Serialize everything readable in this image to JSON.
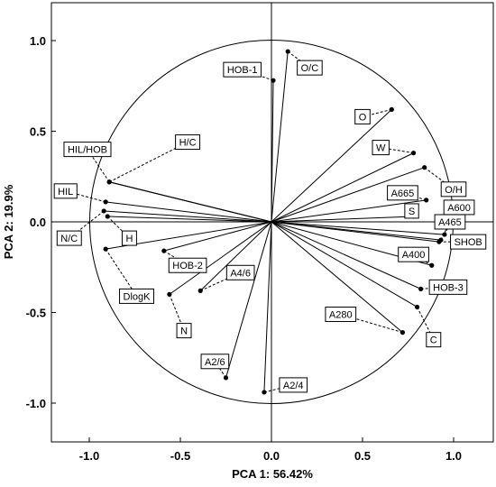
{
  "chart_data": {
    "type": "scatter",
    "xlabel": "PCA 1: 56.42%",
    "ylabel": "PCA 2: 19.9%",
    "xlim": [
      -1.2,
      1.2
    ],
    "ylim": [
      -1.2,
      1.2
    ],
    "x_ticks": [
      "-1.0",
      "-0.5",
      "0.0",
      "0.5",
      "1.0"
    ],
    "y_ticks": [
      "1.0",
      "0.5",
      "0.0",
      "-0.5",
      "-1.0"
    ],
    "x_tick_values": [
      -1.0,
      -0.5,
      0.0,
      0.5,
      1.0
    ],
    "y_tick_values": [
      1.0,
      0.5,
      0.0,
      -0.5,
      -1.0
    ],
    "unit_circle": true,
    "grid": false,
    "points": [
      {
        "label": "HOB-1",
        "x": 0.01,
        "y": 0.78,
        "lx": -0.16,
        "ly": 0.84
      },
      {
        "label": "O/C",
        "x": 0.09,
        "y": 0.94,
        "lx": 0.21,
        "ly": 0.85
      },
      {
        "label": "O",
        "x": 0.66,
        "y": 0.62,
        "lx": 0.5,
        "ly": 0.58
      },
      {
        "label": "W",
        "x": 0.78,
        "y": 0.38,
        "lx": 0.6,
        "ly": 0.41
      },
      {
        "label": "O/H",
        "x": 0.84,
        "y": 0.3,
        "lx": 1.0,
        "ly": 0.18
      },
      {
        "label": "A665",
        "x": 0.85,
        "y": 0.12,
        "lx": 0.72,
        "ly": 0.16
      },
      {
        "label": "S",
        "x": 0.78,
        "y": 0.03,
        "lx": 0.77,
        "ly": 0.06
      },
      {
        "label": "A600",
        "x": 0.95,
        "y": -0.07,
        "lx": 1.03,
        "ly": 0.08
      },
      {
        "label": "A465",
        "x": 0.93,
        "y": -0.1,
        "lx": 0.98,
        "ly": 0.0
      },
      {
        "label": "SHOB",
        "x": 0.92,
        "y": -0.11,
        "lx": 1.08,
        "ly": -0.11
      },
      {
        "label": "A400",
        "x": 0.88,
        "y": -0.24,
        "lx": 0.78,
        "ly": -0.18
      },
      {
        "label": "HOB-3",
        "x": 0.82,
        "y": -0.37,
        "lx": 0.97,
        "ly": -0.36
      },
      {
        "label": "A280",
        "x": 0.72,
        "y": -0.61,
        "lx": 0.38,
        "ly": -0.51
      },
      {
        "label": "C",
        "x": 0.8,
        "y": -0.47,
        "lx": 0.89,
        "ly": -0.65
      },
      {
        "label": "A2/4",
        "x": -0.04,
        "y": -0.94,
        "lx": 0.12,
        "ly": -0.9
      },
      {
        "label": "A2/6",
        "x": -0.25,
        "y": -0.86,
        "lx": -0.31,
        "ly": -0.77
      },
      {
        "label": "A4/6",
        "x": -0.39,
        "y": -0.38,
        "lx": -0.17,
        "ly": -0.28
      },
      {
        "label": "N",
        "x": -0.56,
        "y": -0.4,
        "lx": -0.48,
        "ly": -0.6
      },
      {
        "label": "HOB-2",
        "x": -0.59,
        "y": -0.16,
        "lx": -0.46,
        "ly": -0.24
      },
      {
        "label": "DlogK",
        "x": -0.91,
        "y": -0.15,
        "lx": -0.74,
        "ly": -0.41
      },
      {
        "label": "H",
        "x": -0.9,
        "y": 0.03,
        "lx": -0.78,
        "ly": -0.09
      },
      {
        "label": "N/C",
        "x": -0.92,
        "y": 0.06,
        "lx": -1.11,
        "ly": -0.09
      },
      {
        "label": "HIL",
        "x": -0.91,
        "y": 0.11,
        "lx": -1.13,
        "ly": 0.17
      },
      {
        "label": "HIL/HOB",
        "x": -0.89,
        "y": 0.22,
        "lx": -1.01,
        "ly": 0.4
      },
      {
        "label": "H/C",
        "x": -0.89,
        "y": 0.22,
        "lx": -0.46,
        "ly": 0.44
      }
    ]
  }
}
